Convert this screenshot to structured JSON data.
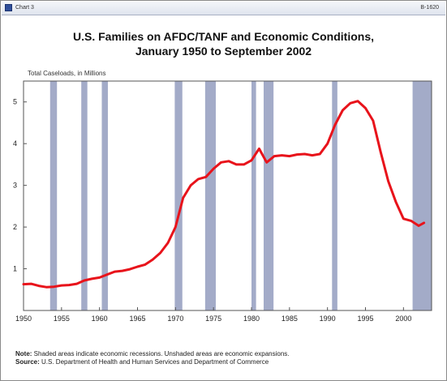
{
  "header": {
    "left_label": "Chart 3",
    "right_label": "B-1620"
  },
  "title_line1": "U.S. Families on AFDC/TANF and Economic Conditions,",
  "title_line2": "January 1950 to September 2002",
  "footer": {
    "note_label": "Note:",
    "note_text": " Shaded areas indicate economic recessions. Unshaded areas are economic expansions.",
    "source_label": "Source:",
    "source_text": " U.S. Department of Health and Human Services and Department of Commerce"
  },
  "chart_data": {
    "type": "line",
    "title": "U.S. Families on AFDC/TANF and Economic Conditions, January 1950 to September 2002",
    "ylabel": "Total Caseloads, in Millions",
    "xlabel": "",
    "xlim": [
      1950,
      2003.7
    ],
    "ylim": [
      0,
      5.5
    ],
    "x_ticks": [
      1950,
      1955,
      1960,
      1965,
      1970,
      1975,
      1980,
      1985,
      1990,
      1995,
      2000
    ],
    "y_ticks": [
      1,
      2,
      3,
      4,
      5
    ],
    "grid": false,
    "legend": "none",
    "line_color": "#e8131b",
    "recession_color": "#a3abc8",
    "recessions": [
      [
        1953.5,
        1954.4
      ],
      [
        1957.6,
        1958.4
      ],
      [
        1960.3,
        1961.1
      ],
      [
        1969.9,
        1970.9
      ],
      [
        1973.9,
        1975.3
      ],
      [
        1980.0,
        1980.6
      ],
      [
        1981.6,
        1982.9
      ],
      [
        1990.6,
        1991.3
      ],
      [
        2001.2,
        2003.7
      ]
    ],
    "series": [
      {
        "x": [
          1950,
          1951,
          1952,
          1953,
          1954,
          1955,
          1956,
          1957,
          1958,
          1959,
          1960,
          1961,
          1962,
          1963,
          1964,
          1965,
          1966,
          1967,
          1968,
          1969,
          1970,
          1970.5,
          1971,
          1972,
          1973,
          1974,
          1975,
          1976,
          1977,
          1978,
          1979,
          1980,
          1981,
          1982,
          1983,
          1984,
          1985,
          1986,
          1987,
          1988,
          1989,
          1990,
          1991,
          1992,
          1993,
          1994,
          1995,
          1996,
          1997,
          1998,
          1999,
          2000,
          2001,
          2002,
          2002.7
        ],
        "values": [
          0.63,
          0.64,
          0.59,
          0.56,
          0.57,
          0.6,
          0.61,
          0.64,
          0.72,
          0.76,
          0.79,
          0.86,
          0.93,
          0.95,
          0.99,
          1.05,
          1.1,
          1.22,
          1.38,
          1.62,
          2.0,
          2.35,
          2.7,
          3.0,
          3.15,
          3.2,
          3.4,
          3.55,
          3.58,
          3.5,
          3.5,
          3.6,
          3.88,
          3.55,
          3.7,
          3.72,
          3.7,
          3.74,
          3.75,
          3.72,
          3.75,
          4.0,
          4.45,
          4.8,
          4.97,
          5.02,
          4.85,
          4.55,
          3.8,
          3.1,
          2.6,
          2.2,
          2.15,
          2.03,
          2.1
        ]
      }
    ]
  }
}
